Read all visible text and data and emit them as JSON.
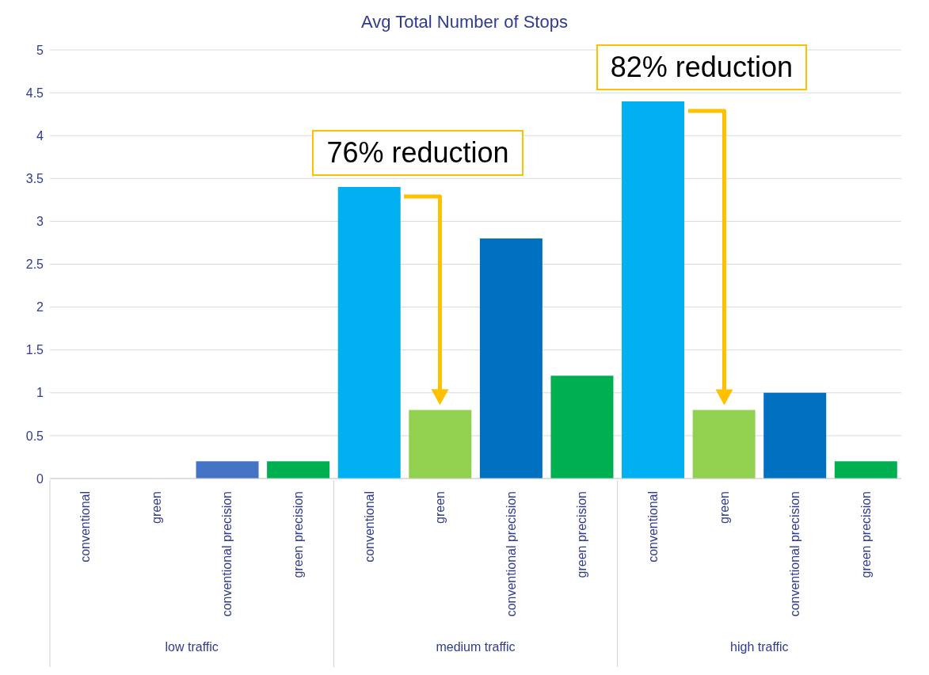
{
  "chart_data": {
    "type": "bar",
    "title": "Avg Total Number of Stops",
    "categories": [
      "conventional",
      "green",
      "conventional precision",
      "green precision",
      "conventional",
      "green",
      "conventional precision",
      "green precision",
      "conventional",
      "green",
      "conventional precision",
      "green precision"
    ],
    "values": [
      0,
      0,
      0.2,
      0.2,
      3.4,
      0.8,
      2.8,
      1.2,
      4.4,
      0.8,
      1.0,
      0.2
    ],
    "colors": [
      "#00b0f0",
      "#92d050",
      "#4472c4",
      "#00b050",
      "#00b0f0",
      "#92d050",
      "#0070c0",
      "#00b050",
      "#00b0f0",
      "#92d050",
      "#0070c0",
      "#00b050"
    ],
    "ylim": [
      0,
      5
    ],
    "yticks": [
      0,
      0.5,
      1,
      1.5,
      2,
      2.5,
      3,
      3.5,
      4,
      4.5,
      5
    ],
    "grid": "y",
    "annotations": [
      "low traffic",
      "medium traffic",
      "high traffic",
      "76% reduction",
      "82% reduction"
    ]
  }
}
